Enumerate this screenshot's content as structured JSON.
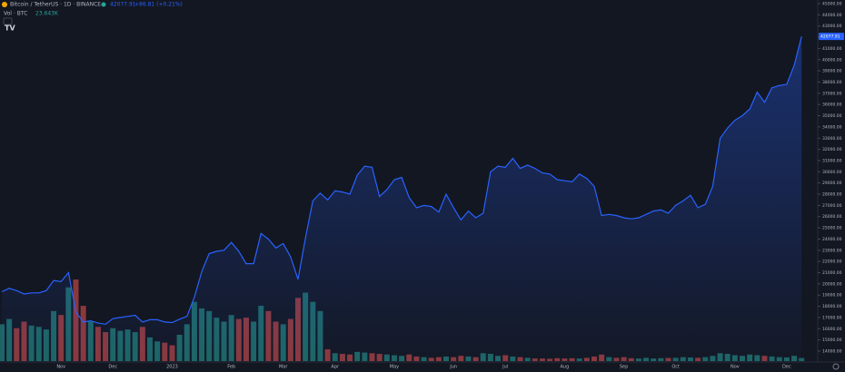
{
  "header": {
    "symbol": "Bitcoin / TetherUS · 1D · BINANCE",
    "price": "42077.91",
    "change": "+86.81 (+0.21%)",
    "vol_title": "Vol · BTC",
    "vol_value": "23.643K"
  },
  "chart_data": {
    "type": "line",
    "categories": [
      null,
      null,
      null,
      null,
      null,
      null,
      null,
      null,
      "Nov",
      null,
      null,
      null,
      null,
      null,
      null,
      "Dec",
      null,
      null,
      null,
      null,
      null,
      null,
      null,
      "2023",
      null,
      null,
      null,
      null,
      null,
      null,
      null,
      "Feb",
      null,
      null,
      null,
      null,
      null,
      null,
      "Mar",
      null,
      null,
      null,
      null,
      null,
      null,
      "Apr",
      null,
      null,
      null,
      null,
      null,
      null,
      null,
      "May",
      null,
      null,
      null,
      null,
      null,
      null,
      null,
      "Jun",
      null,
      null,
      null,
      null,
      null,
      null,
      "Jul",
      null,
      null,
      null,
      null,
      null,
      null,
      null,
      "Aug",
      null,
      null,
      null,
      null,
      null,
      null,
      null,
      "Sep",
      null,
      null,
      null,
      null,
      null,
      null,
      "Oct",
      null,
      null,
      null,
      null,
      null,
      null,
      null,
      "Nov",
      null,
      null,
      null,
      null,
      null,
      null,
      "Dec",
      null,
      null
    ],
    "series": [
      {
        "name": "Bitcoin / TetherUS",
        "color": "#2962ff",
        "values": [
          19300,
          19600,
          19400,
          19100,
          19200,
          19200,
          19400,
          20300,
          20200,
          21000,
          17500,
          16600,
          16700,
          16500,
          16400,
          16900,
          17000,
          17100,
          17200,
          16600,
          16800,
          16800,
          16600,
          16550,
          16850,
          17100,
          18800,
          21100,
          22700,
          22900,
          23000,
          23700,
          22900,
          21800,
          21800,
          24500,
          24000,
          23200,
          23600,
          22400,
          20400,
          24100,
          27400,
          28100,
          27500,
          28300,
          28200,
          28000,
          29700,
          30500,
          30400,
          27800,
          28400,
          29300,
          29500,
          27700,
          26800,
          27000,
          26900,
          26400,
          28000,
          26800,
          25700,
          26500,
          25900,
          26300,
          30000,
          30500,
          30400,
          31200,
          30300,
          30600,
          30300,
          29900,
          29800,
          29300,
          29200,
          29100,
          29800,
          29400,
          28700,
          26100,
          26200,
          26100,
          25900,
          25800,
          25900,
          26200,
          26500,
          26600,
          26300,
          27000,
          27400,
          27900,
          26800,
          27100,
          28700,
          33000,
          33900,
          34600,
          35000,
          35600,
          37100,
          36200,
          37500,
          37700,
          37800,
          39500,
          42077.91
        ]
      }
    ],
    "volume": {
      "name": "Vol · BTC",
      "up_color": "#26a69a",
      "down_color": "#ef5350",
      "values": [
        280,
        320,
        250,
        300,
        270,
        260,
        240,
        380,
        350,
        560,
        620,
        420,
        300,
        260,
        220,
        250,
        230,
        240,
        220,
        260,
        180,
        150,
        140,
        120,
        200,
        280,
        450,
        400,
        380,
        330,
        300,
        350,
        320,
        330,
        300,
        420,
        380,
        300,
        280,
        320,
        480,
        520,
        450,
        380,
        90,
        60,
        55,
        50,
        70,
        65,
        60,
        55,
        50,
        45,
        40,
        50,
        35,
        30,
        25,
        30,
        35,
        30,
        40,
        35,
        30,
        60,
        55,
        40,
        45,
        35,
        30,
        25,
        20,
        20,
        18,
        22,
        20,
        22,
        20,
        25,
        35,
        50,
        30,
        25,
        30,
        22,
        20,
        25,
        20,
        22,
        24,
        25,
        30,
        28,
        25,
        30,
        40,
        60,
        55,
        45,
        40,
        50,
        45,
        40,
        35,
        30,
        28,
        40,
        23.643
      ]
    },
    "ylim": [
      14000,
      45000
    ],
    "yticks": [
      {
        "value": 45000,
        "label": "45000.00"
      },
      {
        "value": 44000,
        "label": "44000.00"
      },
      {
        "value": 43000,
        "label": "43000.00"
      },
      {
        "value": 42000,
        "label": "42000.00"
      },
      {
        "value": 41000,
        "label": "41000.00"
      },
      {
        "value": 40000,
        "label": "40000.00"
      },
      {
        "value": 39000,
        "label": "39000.00"
      },
      {
        "value": 38000,
        "label": "38000.00"
      },
      {
        "value": 37000,
        "label": "37000.00"
      },
      {
        "value": 36000,
        "label": "36000.00"
      },
      {
        "value": 35000,
        "label": "35000.00"
      },
      {
        "value": 34000,
        "label": "34000.00"
      },
      {
        "value": 33000,
        "label": "33000.00"
      },
      {
        "value": 32000,
        "label": "32000.00"
      },
      {
        "value": 31000,
        "label": "31000.00"
      },
      {
        "value": 30000,
        "label": "30000.00"
      },
      {
        "value": 29000,
        "label": "29000.00"
      },
      {
        "value": 28000,
        "label": "28000.00"
      },
      {
        "value": 27000,
        "label": "27000.00"
      },
      {
        "value": 26000,
        "label": "26000.00"
      },
      {
        "value": 25000,
        "label": "25000.00"
      },
      {
        "value": 24000,
        "label": "24000.00"
      },
      {
        "value": 23000,
        "label": "23000.00"
      },
      {
        "value": 22000,
        "label": "22000.00"
      },
      {
        "value": 21000,
        "label": "21000.00"
      },
      {
        "value": 20000,
        "label": "20000.00"
      },
      {
        "value": 19000,
        "label": "19000.00"
      },
      {
        "value": 18000,
        "label": "18000.00"
      },
      {
        "value": 17000,
        "label": "17000.00"
      },
      {
        "value": 16000,
        "label": "16000.00"
      },
      {
        "value": 15000,
        "label": "15000.00"
      },
      {
        "value": 14000,
        "label": "14000.00"
      }
    ]
  }
}
